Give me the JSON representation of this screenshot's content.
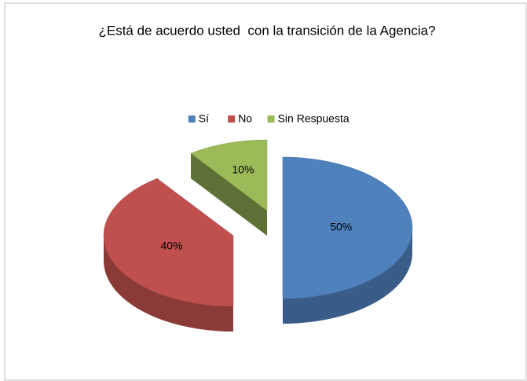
{
  "chart_data": {
    "type": "pie3d",
    "title": "¿Está de acuerdo usted  con la transición de la Agencia?",
    "categories": [
      "Sí",
      "No",
      "Sin Respuesta"
    ],
    "values": [
      50,
      40,
      10
    ],
    "value_labels": [
      "50%",
      "40%",
      "10%"
    ],
    "colors": [
      "#4f81bd",
      "#c0504d",
      "#9bbb59"
    ],
    "legend": "top"
  }
}
